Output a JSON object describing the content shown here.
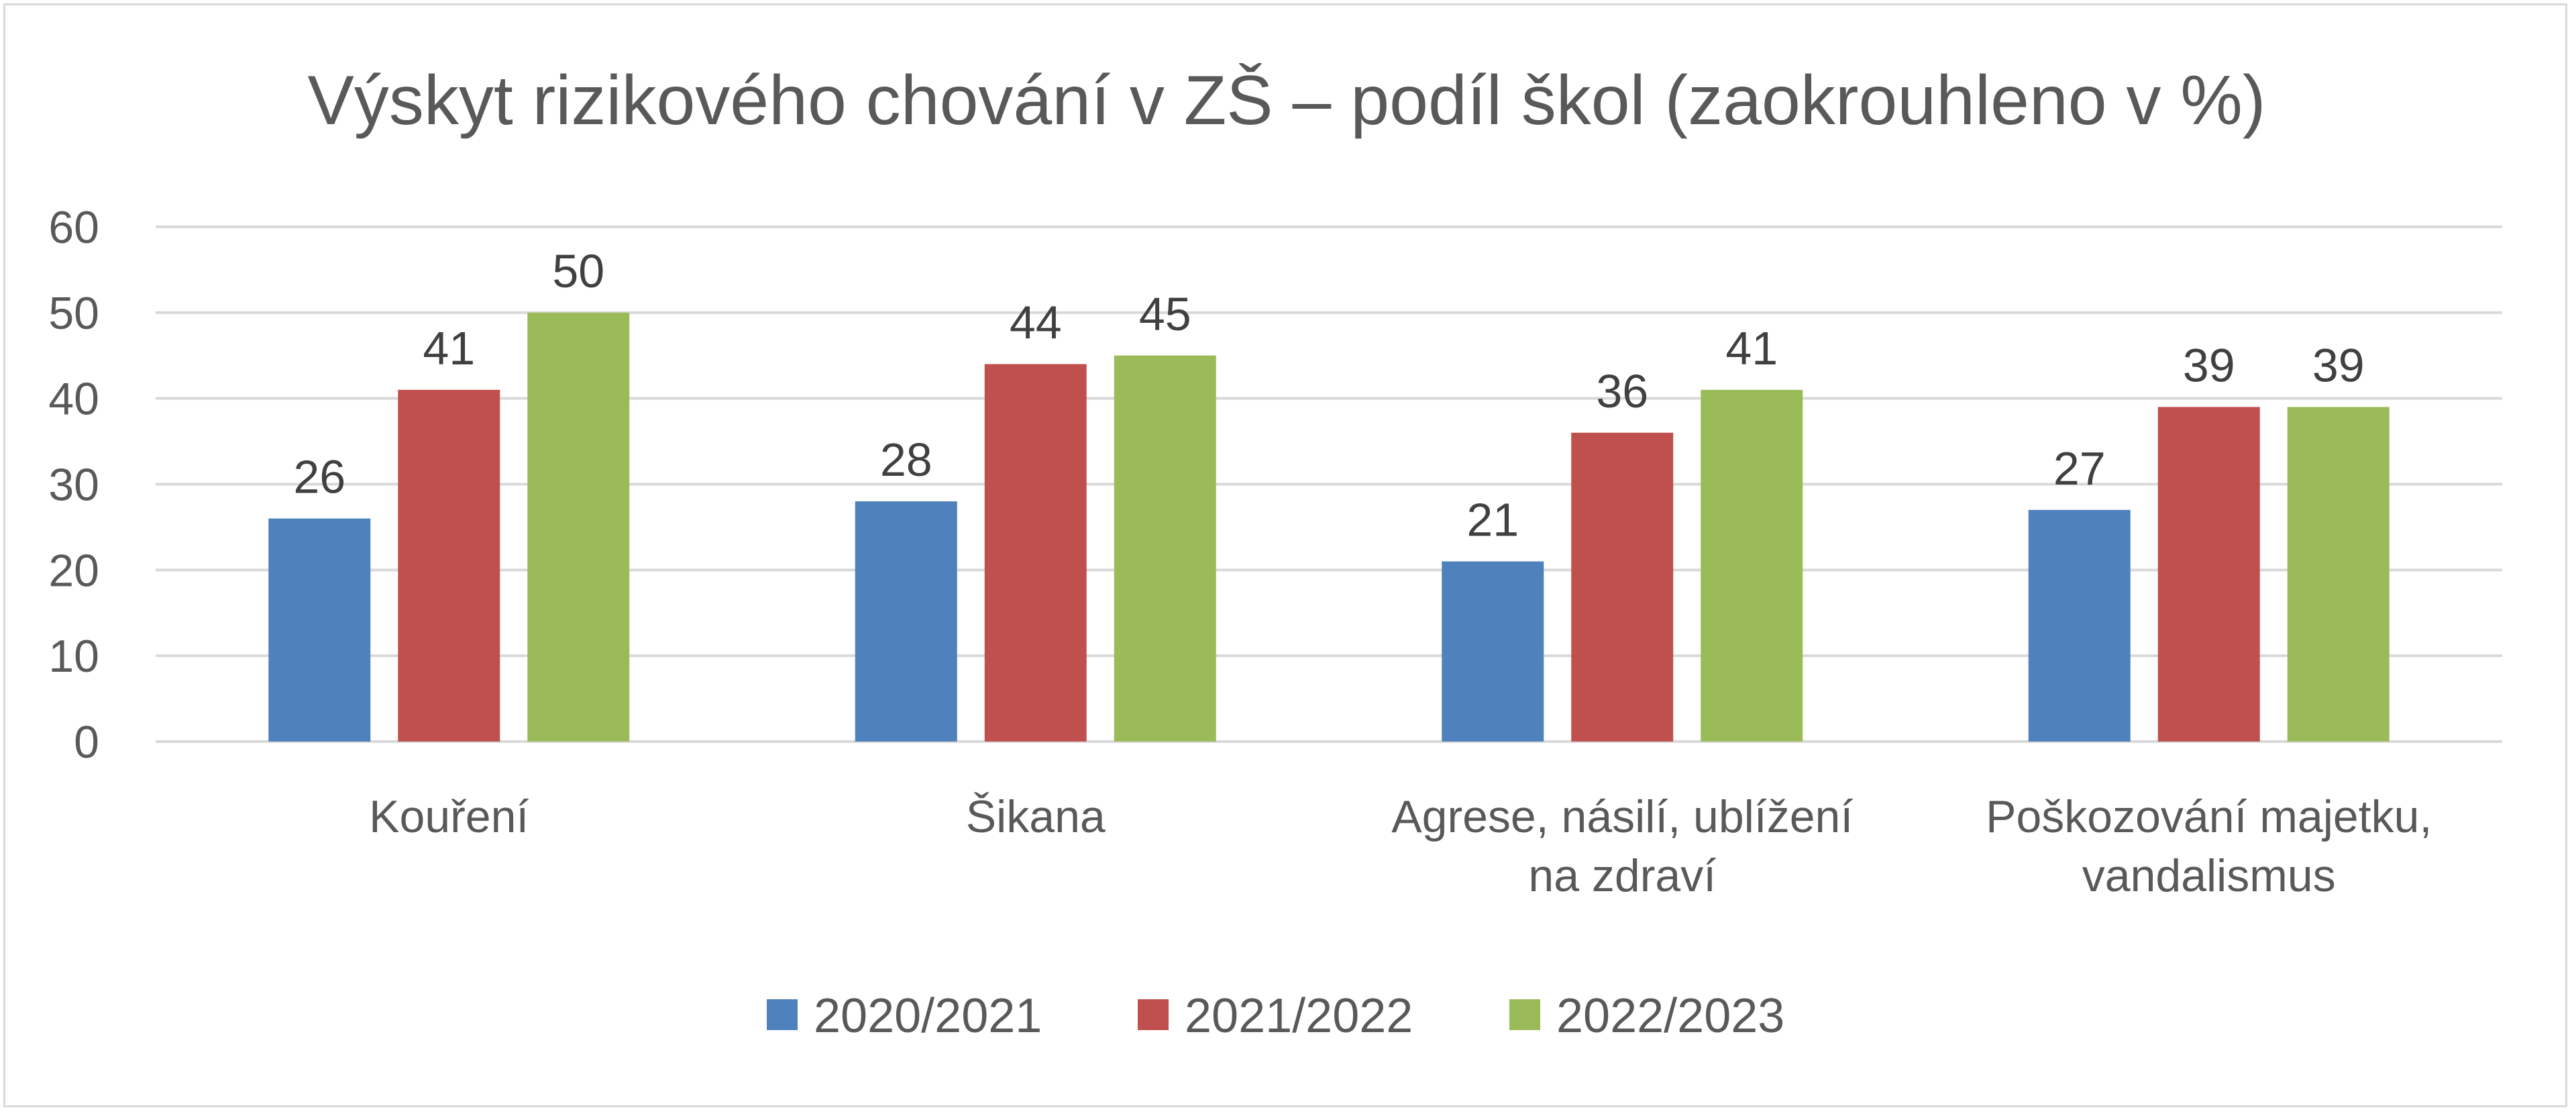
{
  "chart_data": {
    "type": "bar",
    "title": "Výskyt rizikového chování v ZŠ – podíl škol (zaokrouhleno v %)",
    "xlabel": "",
    "ylabel": "",
    "ylim": [
      0,
      60
    ],
    "yticks": [
      0,
      10,
      20,
      30,
      40,
      50,
      60
    ],
    "grid": true,
    "legend_position": "bottom",
    "categories": [
      [
        "Kouření"
      ],
      [
        "Šikana"
      ],
      [
        "Agrese, násilí, ublížení",
        "na zdraví"
      ],
      [
        "Poškozování majetku,",
        "vandalismus"
      ]
    ],
    "series": [
      {
        "name": "2020/2021",
        "color": "#4f81bd",
        "values": [
          26,
          28,
          21,
          27
        ]
      },
      {
        "name": "2021/2022",
        "color": "#c0504d",
        "values": [
          41,
          44,
          36,
          39
        ]
      },
      {
        "name": "2022/2023",
        "color": "#9bbb59",
        "values": [
          50,
          45,
          41,
          39
        ]
      }
    ]
  },
  "colors": {
    "gridline": "#d9d9d9",
    "text": "#595959",
    "data_label": "#404040",
    "frame": "#d9d9d9"
  }
}
